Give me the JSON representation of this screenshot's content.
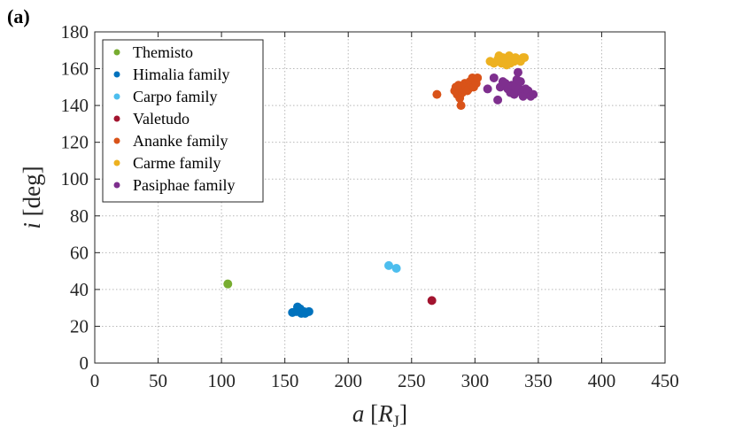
{
  "panel_label": "(a)",
  "chart_data": {
    "type": "scatter",
    "title": "",
    "xlabel": {
      "var": "a",
      "unit_base": "R",
      "unit_sub": "J"
    },
    "ylabel": {
      "var": "i",
      "unit": "[deg]"
    },
    "xlim": [
      0,
      450
    ],
    "ylim": [
      0,
      180
    ],
    "xticks": [
      0,
      50,
      100,
      150,
      200,
      250,
      300,
      350,
      400,
      450
    ],
    "yticks": [
      0,
      20,
      40,
      60,
      80,
      100,
      120,
      140,
      160,
      180
    ],
    "grid": true,
    "legend_position": "top-left",
    "series": [
      {
        "name": "Themisto",
        "color": "#77AC30",
        "points": [
          [
            105,
            43
          ]
        ]
      },
      {
        "name": "Himalia family",
        "color": "#0072BD",
        "points": [
          [
            156,
            27.5
          ],
          [
            159,
            28
          ],
          [
            160,
            30.5
          ],
          [
            161,
            28.5
          ],
          [
            162,
            29.5
          ],
          [
            163,
            27
          ],
          [
            164,
            27.5
          ],
          [
            165,
            28
          ],
          [
            166,
            27
          ],
          [
            169,
            28
          ]
        ]
      },
      {
        "name": "Carpo family",
        "color": "#4DBEEE",
        "points": [
          [
            232,
            53
          ],
          [
            238,
            51.5
          ]
        ]
      },
      {
        "name": "Valetudo",
        "color": "#A2142F",
        "points": [
          [
            266,
            34
          ]
        ]
      },
      {
        "name": "Ananke family",
        "color": "#D95319",
        "points": [
          [
            270,
            146
          ],
          [
            284,
            148
          ],
          [
            285,
            150
          ],
          [
            286,
            146
          ],
          [
            287,
            151
          ],
          [
            288,
            144
          ],
          [
            289,
            140
          ],
          [
            290,
            147
          ],
          [
            291,
            149
          ],
          [
            292,
            152
          ],
          [
            293,
            150
          ],
          [
            294,
            148
          ],
          [
            295,
            149
          ],
          [
            296,
            153
          ],
          [
            297,
            151
          ],
          [
            298,
            155
          ],
          [
            299,
            150
          ],
          [
            301,
            152
          ],
          [
            302,
            155
          ]
        ]
      },
      {
        "name": "Carme family",
        "color": "#EDB120",
        "points": [
          [
            312,
            164
          ],
          [
            315,
            163
          ],
          [
            318,
            165
          ],
          [
            319,
            167
          ],
          [
            321,
            163
          ],
          [
            322,
            166
          ],
          [
            323,
            164
          ],
          [
            324,
            165
          ],
          [
            325,
            162
          ],
          [
            326,
            166
          ],
          [
            327,
            167
          ],
          [
            328,
            163
          ],
          [
            329,
            165
          ],
          [
            331,
            164
          ],
          [
            332,
            166
          ],
          [
            334,
            165
          ],
          [
            336,
            164
          ],
          [
            338,
            166
          ],
          [
            339,
            166
          ]
        ]
      },
      {
        "name": "Pasiphae family",
        "color": "#7E2F8E",
        "points": [
          [
            310,
            149
          ],
          [
            315,
            155
          ],
          [
            318,
            143
          ],
          [
            320,
            150
          ],
          [
            322,
            153
          ],
          [
            324,
            152
          ],
          [
            326,
            149
          ],
          [
            328,
            147
          ],
          [
            329,
            151
          ],
          [
            331,
            146
          ],
          [
            332,
            150
          ],
          [
            333,
            154
          ],
          [
            334,
            158
          ],
          [
            335,
            149
          ],
          [
            336,
            153
          ],
          [
            337,
            147
          ],
          [
            338,
            145
          ],
          [
            340,
            149
          ],
          [
            342,
            148
          ],
          [
            344,
            145
          ],
          [
            346,
            146
          ]
        ]
      }
    ]
  }
}
